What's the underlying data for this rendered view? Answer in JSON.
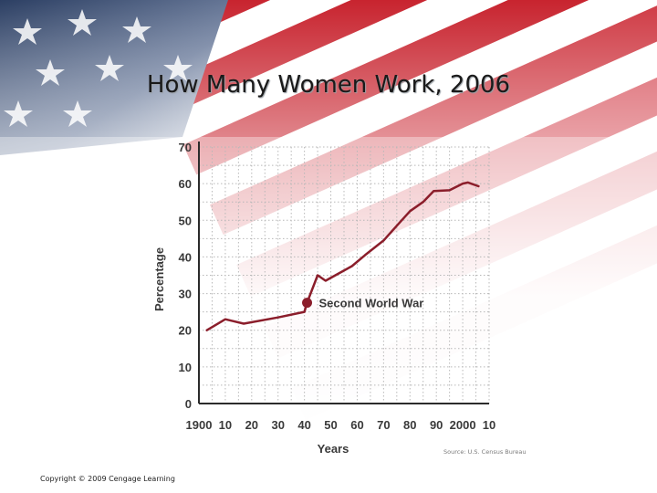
{
  "slide": {
    "title": "How Many Women Work, 2006",
    "copyright": "Copyright © 2009 Cengage Learning"
  },
  "colors": {
    "line": "#8b1e2b",
    "axis": "#2b2b2b",
    "grid": "#b8b8b8",
    "text": "#3a3a3a"
  },
  "chart_data": {
    "type": "line",
    "xlabel": "Years",
    "ylabel": "Percentage",
    "xlim": [
      1900,
      2010
    ],
    "ylim": [
      0,
      70
    ],
    "x_ticks": [
      1900,
      1910,
      1920,
      1930,
      1940,
      1950,
      1960,
      1970,
      1980,
      1990,
      2000,
      2010
    ],
    "x_tick_labels": [
      "1900",
      "10",
      "20",
      "30",
      "40",
      "50",
      "60",
      "70",
      "80",
      "90",
      "2000",
      "10"
    ],
    "y_ticks": [
      0,
      10,
      20,
      30,
      40,
      50,
      60,
      70
    ],
    "grid": true,
    "source": "Source: U.S. Census Bureau",
    "series": [
      {
        "x": [
          1903,
          1910,
          1917,
          1930,
          1940,
          1941,
          1945,
          1948,
          1953,
          1958,
          1963,
          1970,
          1975,
          1980,
          1985,
          1989,
          1995,
          2000,
          2002,
          2006
        ],
        "y": [
          20,
          23,
          21.8,
          23.5,
          25,
          27.5,
          35,
          33.5,
          35.5,
          37.5,
          40.5,
          44.5,
          48.5,
          52.5,
          55,
          58,
          58.2,
          60,
          60.3,
          59.3
        ]
      }
    ],
    "annotations": [
      {
        "text": "Second World War",
        "x": 1941,
        "y": 27.5
      }
    ]
  }
}
